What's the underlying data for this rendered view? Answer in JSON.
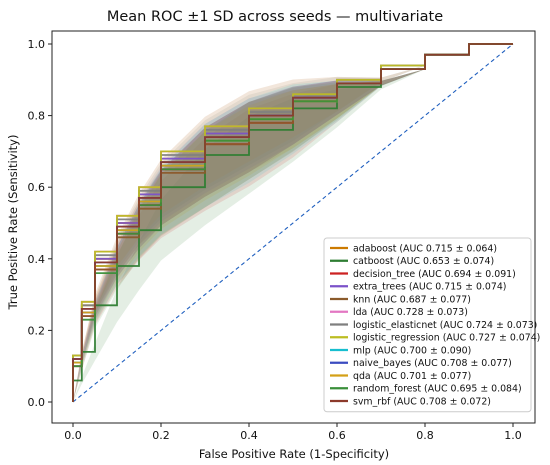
{
  "chart_data": {
    "type": "line",
    "title": "Mean ROC ±1 SD across seeds — multivariate",
    "xlabel": "False Positive Rate (1-Specificity)",
    "ylabel": "True Positive Rate (Sensitivity)",
    "xlim": [
      0.0,
      1.0
    ],
    "ylim": [
      0.0,
      1.0
    ],
    "xticks": [
      "0.0",
      "0.2",
      "0.4",
      "0.6",
      "0.8",
      "1.0"
    ],
    "yticks": [
      "0.0",
      "0.2",
      "0.4",
      "0.6",
      "0.8",
      "1.0"
    ],
    "grid": false,
    "legend_position": "lower-right",
    "chance_line": {
      "x": [
        0,
        1
      ],
      "y": [
        0,
        1
      ],
      "color": "#1f5fbf",
      "style": "dashed"
    },
    "series": [
      {
        "name": "adaboost",
        "label": "adaboost (AUC 0.715 ± 0.064)",
        "color": "#cc7a00",
        "sd": 0.1,
        "x": [
          0,
          0.02,
          0.05,
          0.1,
          0.15,
          0.2,
          0.3,
          0.4,
          0.5,
          0.6,
          0.7,
          0.8,
          0.9,
          1.0
        ],
        "y": [
          0,
          0.13,
          0.27,
          0.4,
          0.5,
          0.57,
          0.67,
          0.74,
          0.79,
          0.84,
          0.89,
          0.93,
          0.97,
          1.0
        ]
      },
      {
        "name": "catboost",
        "label": "catboost (AUC 0.653 ± 0.074)",
        "color": "#2e7d32",
        "sd": 0.11,
        "x": [
          0,
          0.02,
          0.05,
          0.1,
          0.15,
          0.2,
          0.3,
          0.4,
          0.5,
          0.6,
          0.7,
          0.8,
          0.9,
          1.0
        ],
        "y": [
          0,
          0.06,
          0.14,
          0.27,
          0.38,
          0.48,
          0.6,
          0.69,
          0.76,
          0.82,
          0.88,
          0.93,
          0.97,
          1.0
        ]
      },
      {
        "name": "decision_tree",
        "label": "decision_tree (AUC 0.694 ± 0.091)",
        "color": "#cc2222",
        "sd": 0.12,
        "x": [
          0,
          0.02,
          0.05,
          0.1,
          0.15,
          0.2,
          0.3,
          0.4,
          0.5,
          0.6,
          0.7,
          0.8,
          0.9,
          1.0
        ],
        "y": [
          0,
          0.1,
          0.24,
          0.37,
          0.47,
          0.55,
          0.65,
          0.72,
          0.78,
          0.84,
          0.89,
          0.93,
          0.97,
          1.0
        ]
      },
      {
        "name": "extra_trees",
        "label": "extra_trees (AUC 0.715 ± 0.074)",
        "color": "#7b52c9",
        "sd": 0.1,
        "x": [
          0,
          0.02,
          0.05,
          0.1,
          0.15,
          0.2,
          0.3,
          0.4,
          0.5,
          0.6,
          0.7,
          0.8,
          0.9,
          1.0
        ],
        "y": [
          0,
          0.12,
          0.26,
          0.4,
          0.5,
          0.58,
          0.68,
          0.75,
          0.8,
          0.85,
          0.89,
          0.93,
          0.97,
          1.0
        ]
      },
      {
        "name": "knn",
        "label": "knn (AUC 0.687 ± 0.077)",
        "color": "#8b5a2b",
        "sd": 0.1,
        "x": [
          0,
          0.02,
          0.05,
          0.1,
          0.15,
          0.2,
          0.3,
          0.4,
          0.5,
          0.6,
          0.7,
          0.8,
          0.9,
          1.0
        ],
        "y": [
          0,
          0.11,
          0.24,
          0.37,
          0.46,
          0.54,
          0.64,
          0.72,
          0.78,
          0.84,
          0.89,
          0.93,
          0.97,
          1.0
        ]
      },
      {
        "name": "lda",
        "label": "lda (AUC 0.728 ± 0.073)",
        "color": "#e377c2",
        "sd": 0.1,
        "x": [
          0,
          0.02,
          0.05,
          0.1,
          0.15,
          0.2,
          0.3,
          0.4,
          0.5,
          0.6,
          0.7,
          0.8,
          0.9,
          1.0
        ],
        "y": [
          0,
          0.13,
          0.28,
          0.42,
          0.52,
          0.6,
          0.7,
          0.77,
          0.82,
          0.86,
          0.9,
          0.94,
          0.97,
          1.0
        ]
      },
      {
        "name": "logistic_elasticnet",
        "label": "logistic_elasticnet (AUC 0.724 ± 0.073)",
        "color": "#7f7f7f",
        "sd": 0.1,
        "x": [
          0,
          0.02,
          0.05,
          0.1,
          0.15,
          0.2,
          0.3,
          0.4,
          0.5,
          0.6,
          0.7,
          0.8,
          0.9,
          1.0
        ],
        "y": [
          0,
          0.13,
          0.27,
          0.41,
          0.51,
          0.59,
          0.69,
          0.76,
          0.81,
          0.86,
          0.9,
          0.94,
          0.97,
          1.0
        ]
      },
      {
        "name": "logistic_regression",
        "label": "logistic_regression (AUC 0.727 ± 0.074)",
        "color": "#bcbd22",
        "sd": 0.1,
        "x": [
          0,
          0.02,
          0.05,
          0.1,
          0.15,
          0.2,
          0.3,
          0.4,
          0.5,
          0.6,
          0.7,
          0.8,
          0.9,
          1.0
        ],
        "y": [
          0,
          0.13,
          0.28,
          0.42,
          0.52,
          0.6,
          0.7,
          0.77,
          0.82,
          0.86,
          0.9,
          0.94,
          0.97,
          1.0
        ]
      },
      {
        "name": "mlp",
        "label": "mlp (AUC 0.700 ± 0.090)",
        "color": "#17becf",
        "sd": 0.12,
        "x": [
          0,
          0.02,
          0.05,
          0.1,
          0.15,
          0.2,
          0.3,
          0.4,
          0.5,
          0.6,
          0.7,
          0.8,
          0.9,
          1.0
        ],
        "y": [
          0,
          0.11,
          0.25,
          0.38,
          0.48,
          0.56,
          0.66,
          0.73,
          0.79,
          0.84,
          0.89,
          0.93,
          0.97,
          1.0
        ]
      },
      {
        "name": "naive_bayes",
        "label": "naive_bayes (AUC 0.708 ± 0.077)",
        "color": "#3b4cc0",
        "sd": 0.1,
        "x": [
          0,
          0.02,
          0.05,
          0.1,
          0.15,
          0.2,
          0.3,
          0.4,
          0.5,
          0.6,
          0.7,
          0.8,
          0.9,
          1.0
        ],
        "y": [
          0,
          0.12,
          0.25,
          0.39,
          0.49,
          0.57,
          0.67,
          0.74,
          0.8,
          0.85,
          0.89,
          0.93,
          0.97,
          1.0
        ]
      },
      {
        "name": "qda",
        "label": "qda (AUC 0.701 ± 0.077)",
        "color": "#d4a017",
        "sd": 0.1,
        "x": [
          0,
          0.02,
          0.05,
          0.1,
          0.15,
          0.2,
          0.3,
          0.4,
          0.5,
          0.6,
          0.7,
          0.8,
          0.9,
          1.0
        ],
        "y": [
          0,
          0.11,
          0.25,
          0.38,
          0.48,
          0.56,
          0.66,
          0.73,
          0.79,
          0.84,
          0.89,
          0.93,
          0.97,
          1.0
        ]
      },
      {
        "name": "random_forest",
        "label": "random_forest (AUC 0.695 ± 0.084)",
        "color": "#3a8f3a",
        "sd": 0.11,
        "x": [
          0,
          0.02,
          0.05,
          0.1,
          0.15,
          0.2,
          0.3,
          0.4,
          0.5,
          0.6,
          0.7,
          0.8,
          0.9,
          1.0
        ],
        "y": [
          0,
          0.1,
          0.23,
          0.36,
          0.47,
          0.55,
          0.65,
          0.73,
          0.79,
          0.84,
          0.89,
          0.93,
          0.97,
          1.0
        ]
      },
      {
        "name": "svm_rbf",
        "label": "svm_rbf (AUC 0.708 ± 0.072)",
        "color": "#8c3a2b",
        "sd": 0.1,
        "x": [
          0,
          0.02,
          0.05,
          0.1,
          0.15,
          0.2,
          0.3,
          0.4,
          0.5,
          0.6,
          0.7,
          0.8,
          0.9,
          1.0
        ],
        "y": [
          0,
          0.12,
          0.26,
          0.39,
          0.49,
          0.57,
          0.67,
          0.74,
          0.8,
          0.85,
          0.89,
          0.93,
          0.97,
          1.0
        ]
      }
    ]
  }
}
